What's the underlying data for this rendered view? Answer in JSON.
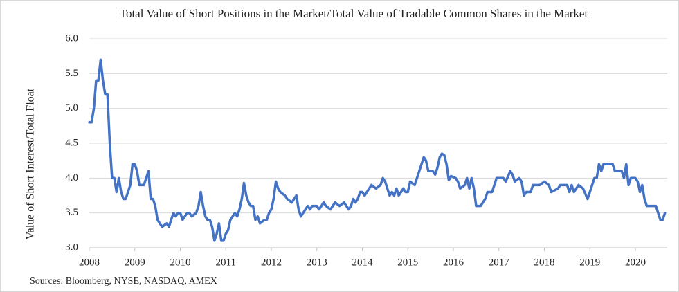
{
  "chart_data": {
    "type": "line",
    "title": "Total Value of Short Positions in the Market/Total Value of Tradable Common Shares in the Market",
    "y_label": "Value of Short Interest/Total Float",
    "source": "Sources: Bloomberg, NYSE, NASDAQ, AMEX",
    "x": [
      2008.0,
      2008.05,
      2008.1,
      2008.15,
      2008.2,
      2008.25,
      2008.3,
      2008.35,
      2008.4,
      2008.45,
      2008.5,
      2008.55,
      2008.6,
      2008.65,
      2008.7,
      2008.75,
      2008.8,
      2008.85,
      2008.9,
      2008.95,
      2009.0,
      2009.05,
      2009.1,
      2009.2,
      2009.25,
      2009.3,
      2009.35,
      2009.4,
      2009.45,
      2009.5,
      2009.55,
      2009.6,
      2009.7,
      2009.75,
      2009.8,
      2009.85,
      2009.9,
      2009.95,
      2010.0,
      2010.05,
      2010.15,
      2010.2,
      2010.25,
      2010.35,
      2010.4,
      2010.45,
      2010.5,
      2010.55,
      2010.6,
      2010.65,
      2010.7,
      2010.75,
      2010.8,
      2010.85,
      2010.9,
      2010.95,
      2011.0,
      2011.05,
      2011.1,
      2011.15,
      2011.2,
      2011.25,
      2011.3,
      2011.35,
      2011.4,
      2011.45,
      2011.5,
      2011.55,
      2011.6,
      2011.65,
      2011.7,
      2011.75,
      2011.85,
      2011.9,
      2011.95,
      2012.0,
      2012.05,
      2012.1,
      2012.15,
      2012.2,
      2012.3,
      2012.35,
      2012.45,
      2012.5,
      2012.55,
      2012.6,
      2012.65,
      2012.7,
      2012.8,
      2012.85,
      2012.9,
      2013.0,
      2013.05,
      2013.15,
      2013.2,
      2013.3,
      2013.4,
      2013.5,
      2013.6,
      2013.7,
      2013.75,
      2013.8,
      2013.85,
      2013.9,
      2013.95,
      2014.0,
      2014.05,
      2014.15,
      2014.2,
      2014.3,
      2014.4,
      2014.45,
      2014.5,
      2014.55,
      2014.6,
      2014.65,
      2014.7,
      2014.75,
      2014.8,
      2014.85,
      2014.9,
      2014.95,
      2015.0,
      2015.05,
      2015.15,
      2015.2,
      2015.3,
      2015.35,
      2015.4,
      2015.45,
      2015.55,
      2015.6,
      2015.65,
      2015.7,
      2015.75,
      2015.8,
      2015.85,
      2015.9,
      2015.95,
      2016.05,
      2016.1,
      2016.15,
      2016.25,
      2016.3,
      2016.35,
      2016.4,
      2016.45,
      2016.5,
      2016.6,
      2016.7,
      2016.75,
      2016.85,
      2016.9,
      2016.95,
      2017.1,
      2017.15,
      2017.25,
      2017.3,
      2017.35,
      2017.45,
      2017.5,
      2017.55,
      2017.6,
      2017.7,
      2017.75,
      2017.9,
      2018.0,
      2018.1,
      2018.15,
      2018.3,
      2018.35,
      2018.5,
      2018.55,
      2018.6,
      2018.65,
      2018.75,
      2018.85,
      2018.95,
      2019.05,
      2019.1,
      2019.15,
      2019.2,
      2019.25,
      2019.3,
      2019.5,
      2019.55,
      2019.7,
      2019.75,
      2019.8,
      2019.85,
      2019.9,
      2020.0,
      2020.05,
      2020.1,
      2020.15,
      2020.2,
      2020.25,
      2020.45,
      2020.5,
      2020.55,
      2020.6,
      2020.65
    ],
    "series": [
      {
        "name": "Short Interest/Total Float",
        "color": "#4472c4",
        "values": [
          4.8,
          4.8,
          5.0,
          5.4,
          5.4,
          5.7,
          5.4,
          5.2,
          5.2,
          4.5,
          4.0,
          4.0,
          3.8,
          4.0,
          3.8,
          3.7,
          3.7,
          3.8,
          3.9,
          4.2,
          4.2,
          4.1,
          3.9,
          3.9,
          4.0,
          4.1,
          3.7,
          3.7,
          3.6,
          3.4,
          3.35,
          3.3,
          3.35,
          3.3,
          3.4,
          3.5,
          3.45,
          3.5,
          3.5,
          3.4,
          3.5,
          3.5,
          3.45,
          3.5,
          3.6,
          3.8,
          3.6,
          3.45,
          3.4,
          3.4,
          3.3,
          3.1,
          3.2,
          3.35,
          3.1,
          3.1,
          3.2,
          3.25,
          3.4,
          3.45,
          3.5,
          3.45,
          3.55,
          3.7,
          3.93,
          3.75,
          3.65,
          3.6,
          3.6,
          3.4,
          3.45,
          3.35,
          3.4,
          3.4,
          3.5,
          3.55,
          3.7,
          3.95,
          3.85,
          3.8,
          3.75,
          3.7,
          3.65,
          3.7,
          3.75,
          3.55,
          3.45,
          3.5,
          3.6,
          3.55,
          3.6,
          3.6,
          3.55,
          3.65,
          3.6,
          3.55,
          3.65,
          3.6,
          3.65,
          3.55,
          3.6,
          3.7,
          3.65,
          3.7,
          3.8,
          3.8,
          3.75,
          3.85,
          3.9,
          3.85,
          3.9,
          4.0,
          3.95,
          3.85,
          3.75,
          3.8,
          3.75,
          3.85,
          3.75,
          3.8,
          3.85,
          3.8,
          3.8,
          3.95,
          3.9,
          4.0,
          4.2,
          4.3,
          4.25,
          4.1,
          4.1,
          4.05,
          4.15,
          4.3,
          4.35,
          4.33,
          4.2,
          3.97,
          4.03,
          4.0,
          3.95,
          3.85,
          3.9,
          4.0,
          3.85,
          4.0,
          3.85,
          3.6,
          3.6,
          3.7,
          3.8,
          3.8,
          3.9,
          4.0,
          4.0,
          3.95,
          4.1,
          4.05,
          3.95,
          4.0,
          3.95,
          3.75,
          3.8,
          3.8,
          3.9,
          3.9,
          3.95,
          3.9,
          3.8,
          3.85,
          3.9,
          3.9,
          3.8,
          3.9,
          3.8,
          3.9,
          3.85,
          3.7,
          3.9,
          4.0,
          4.0,
          4.2,
          4.1,
          4.2,
          4.2,
          4.1,
          4.1,
          4.0,
          4.2,
          3.9,
          4.0,
          4.0,
          3.95,
          3.8,
          3.9,
          3.7,
          3.6,
          3.6,
          3.5,
          3.4,
          3.4,
          3.5
        ]
      }
    ],
    "xlim": [
      2008,
      2020.7
    ],
    "xticks": [
      2008,
      2009,
      2010,
      2011,
      2012,
      2013,
      2014,
      2015,
      2016,
      2017,
      2018,
      2019,
      2020
    ],
    "ylim": [
      3,
      6
    ],
    "yticks": [
      {
        "value": 3,
        "label": "3.0"
      },
      {
        "value": 3.5,
        "label": "3.5"
      },
      {
        "value": 4,
        "label": "4.0"
      },
      {
        "value": 4.5,
        "label": "4.5"
      },
      {
        "value": 5,
        "label": "5.0"
      },
      {
        "value": 5.5,
        "label": "5.5"
      },
      {
        "value": 6,
        "label": "6.0"
      }
    ],
    "grid": true
  }
}
